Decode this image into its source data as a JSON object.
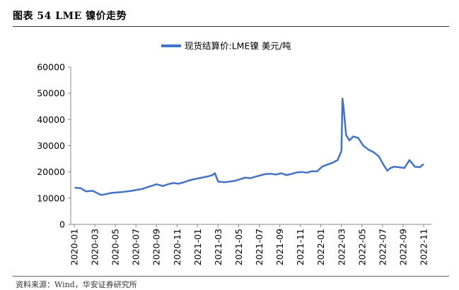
{
  "header": {
    "title": "图表 54 LME 镍价走势"
  },
  "footer": {
    "source": "资料来源：Wind，华安证券研究所"
  },
  "chart_data": {
    "type": "line",
    "ylim": [
      0,
      60000
    ],
    "yticks": [
      "0",
      "10000",
      "20000",
      "30000",
      "40000",
      "50000",
      "60000"
    ],
    "xticks": [
      "2020-01",
      "2020-03",
      "2020-05",
      "2020-07",
      "2020-09",
      "2020-11",
      "2021-01",
      "2021-03",
      "2021-05",
      "2021-07",
      "2021-09",
      "2021-11",
      "2022-01",
      "2022-03",
      "2022-05",
      "2022-07",
      "2022-09",
      "2022-11"
    ],
    "legend_position": "top",
    "grid": false,
    "series": [
      {
        "name": "现货结算价:LME镍 美元/吨",
        "color": "#4472C4",
        "x": [
          "2020-01-02",
          "2020-01-20",
          "2020-02-05",
          "2020-02-25",
          "2020-03-10",
          "2020-03-20",
          "2020-04-01",
          "2020-04-20",
          "2020-05-05",
          "2020-05-20",
          "2020-06-05",
          "2020-06-20",
          "2020-07-05",
          "2020-07-20",
          "2020-08-05",
          "2020-08-20",
          "2020-09-01",
          "2020-09-20",
          "2020-10-05",
          "2020-10-20",
          "2020-11-05",
          "2020-11-20",
          "2020-12-05",
          "2020-12-20",
          "2021-01-05",
          "2021-01-20",
          "2021-02-05",
          "2021-02-15",
          "2021-02-22",
          "2021-03-01",
          "2021-03-20",
          "2021-04-05",
          "2021-04-20",
          "2021-05-05",
          "2021-05-20",
          "2021-06-05",
          "2021-06-20",
          "2021-07-05",
          "2021-07-20",
          "2021-08-05",
          "2021-08-20",
          "2021-09-05",
          "2021-09-20",
          "2021-10-05",
          "2021-10-20",
          "2021-11-05",
          "2021-11-20",
          "2021-12-05",
          "2021-12-20",
          "2022-01-05",
          "2022-01-20",
          "2022-02-05",
          "2022-02-20",
          "2022-03-01",
          "2022-03-04",
          "2022-03-07",
          "2022-03-15",
          "2022-03-25",
          "2022-04-05",
          "2022-04-20",
          "2022-05-05",
          "2022-05-20",
          "2022-06-05",
          "2022-06-20",
          "2022-07-05",
          "2022-07-15",
          "2022-07-25",
          "2022-08-05",
          "2022-08-20",
          "2022-09-05",
          "2022-09-20",
          "2022-10-05",
          "2022-10-20",
          "2022-11-01"
        ],
        "values": [
          14000,
          13800,
          12600,
          12800,
          11800,
          11200,
          11500,
          12000,
          12200,
          12300,
          12600,
          12800,
          13200,
          13500,
          14200,
          14800,
          15300,
          14600,
          15300,
          15800,
          15500,
          16000,
          16700,
          17200,
          17600,
          18000,
          18400,
          18800,
          19500,
          16300,
          16100,
          16300,
          16600,
          17200,
          17800,
          17600,
          18200,
          18700,
          19200,
          19300,
          19000,
          19500,
          18800,
          19200,
          19800,
          20000,
          19700,
          20300,
          20200,
          22000,
          22800,
          23500,
          24500,
          28000,
          48000,
          45000,
          34000,
          32000,
          33500,
          33000,
          30000,
          28500,
          27500,
          26000,
          22500,
          20500,
          21500,
          22000,
          21800,
          21500,
          24500,
          22000,
          21800,
          23000
        ]
      }
    ]
  }
}
